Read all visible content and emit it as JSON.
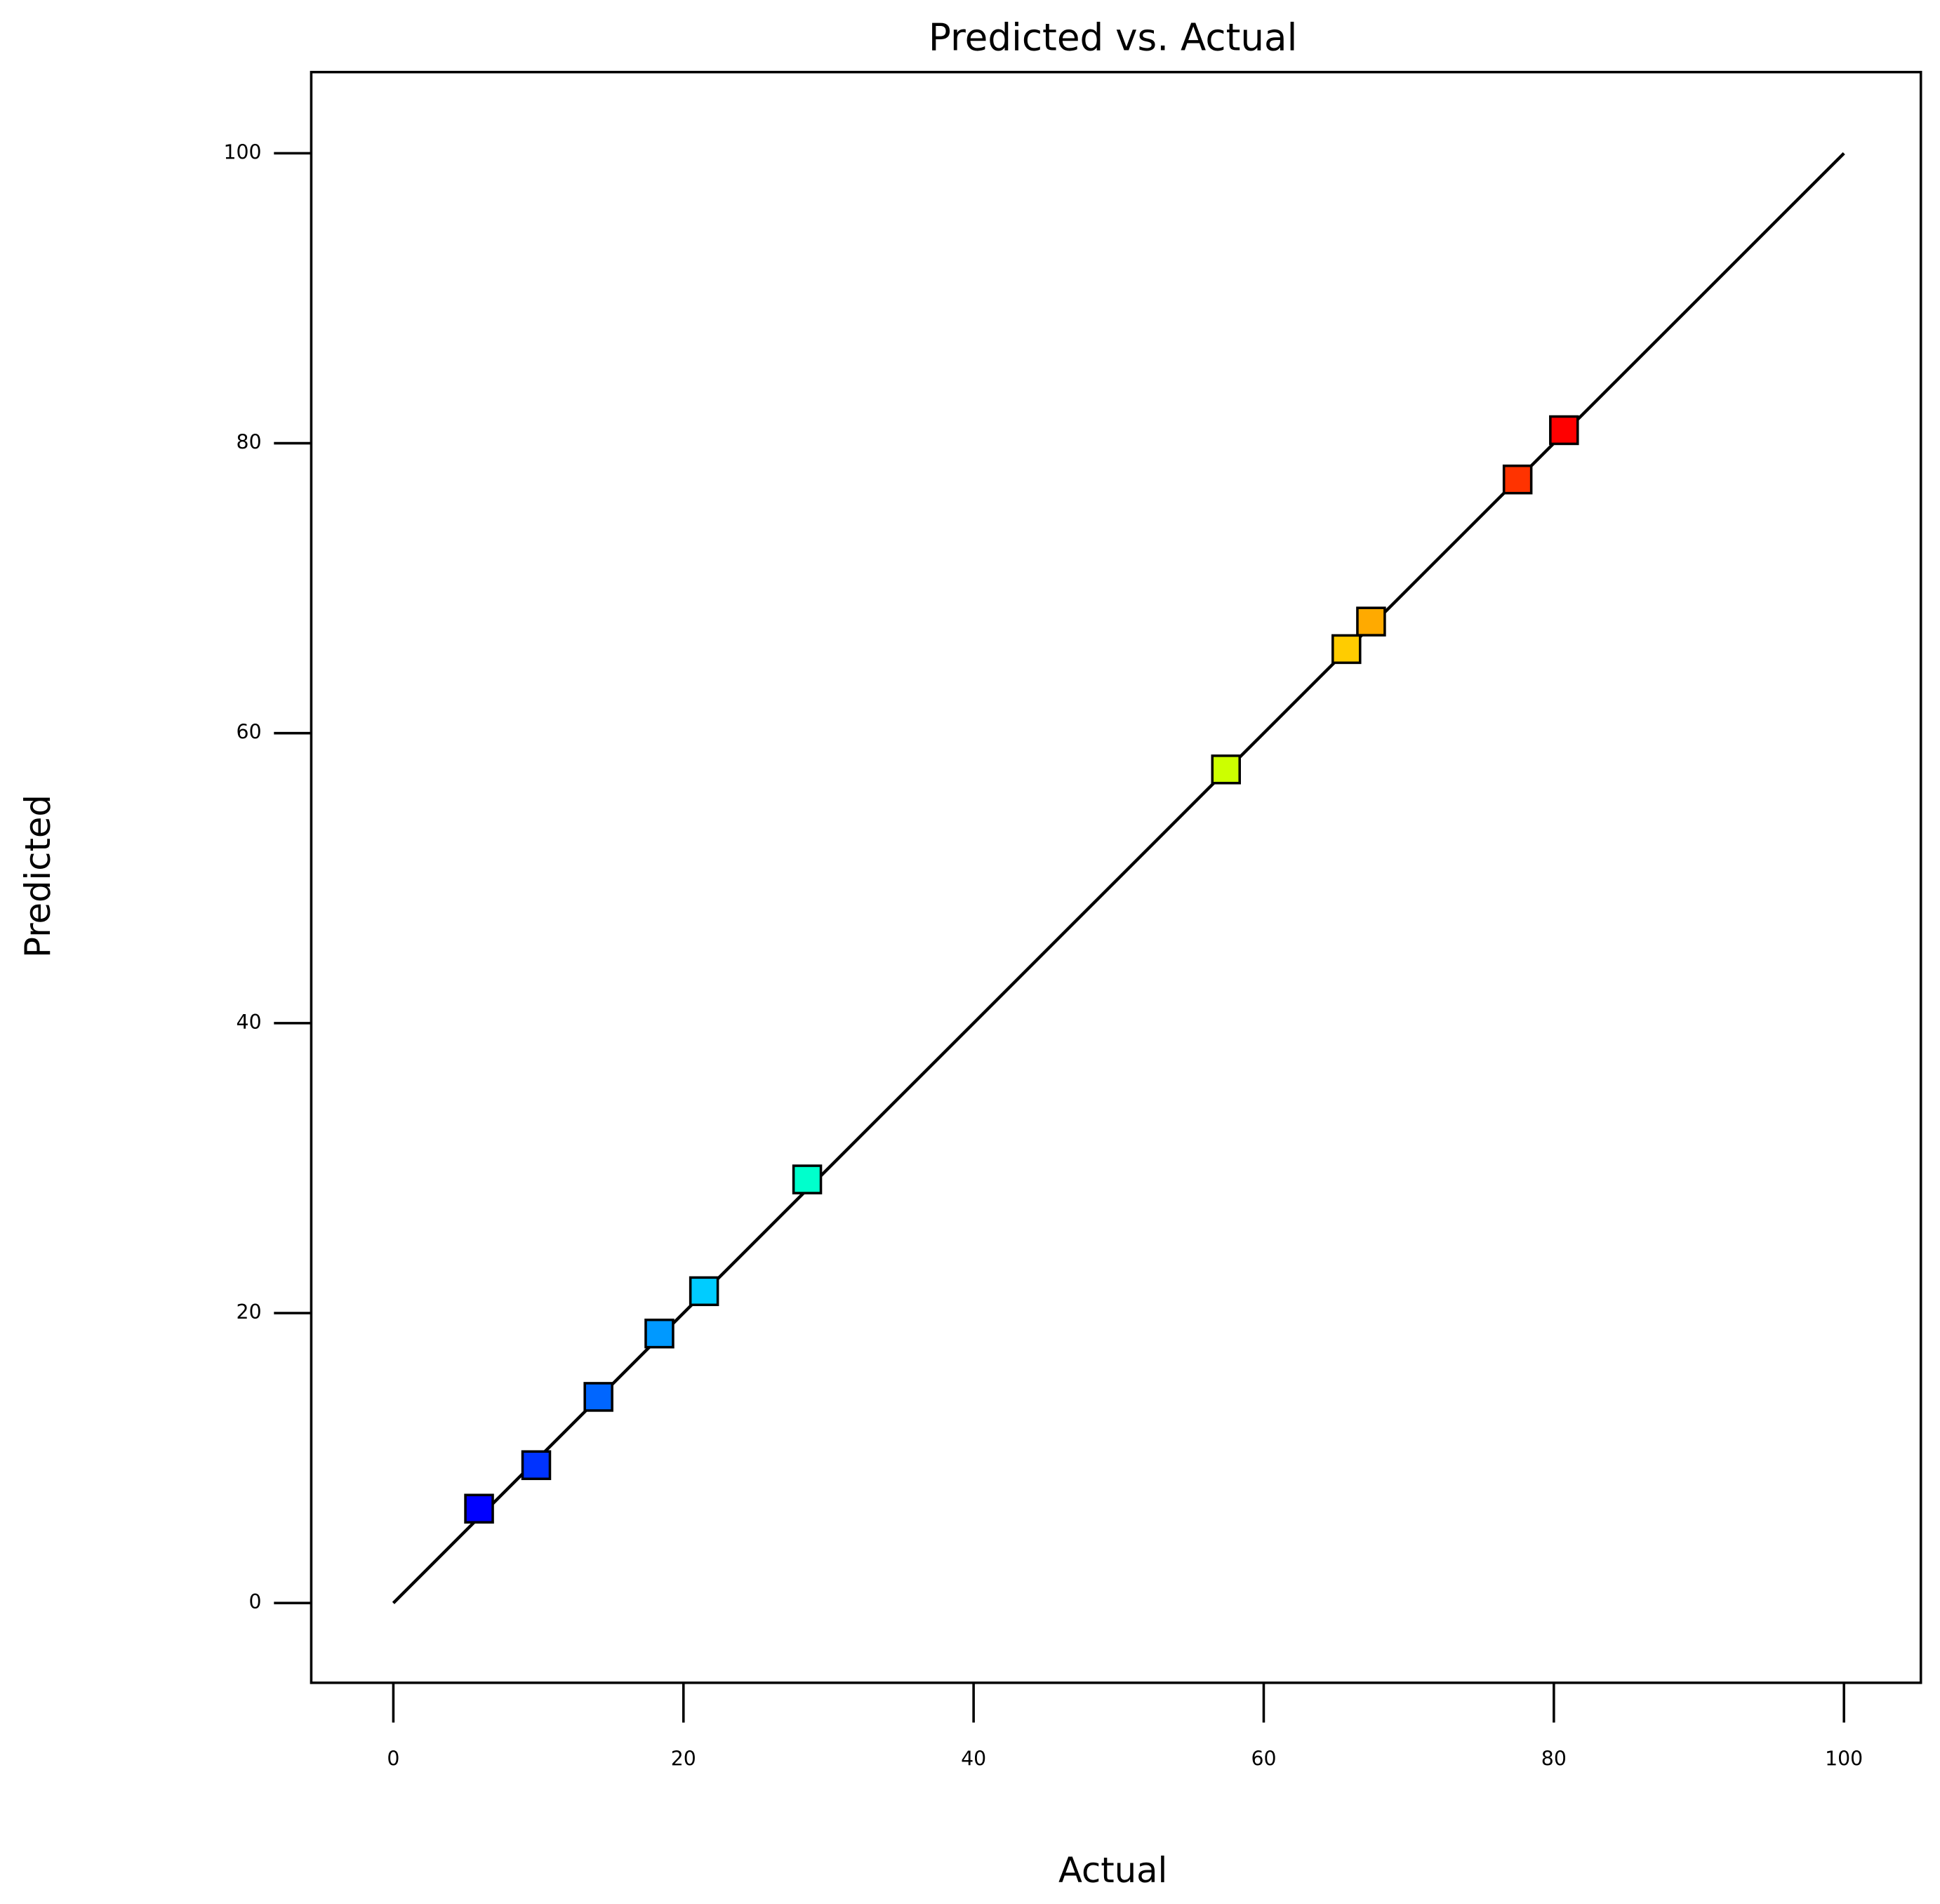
{
  "chart_data": {
    "type": "scatter",
    "title": "Predicted vs. Actual",
    "x_label": "Actual",
    "y_label": "Predicted",
    "series": [
      {
        "x": [
          5.91,
          9.85,
          14.14,
          18.34,
          21.42,
          28.53,
          57.4,
          65.7,
          67.4,
          77.5,
          80.7
        ],
        "values": [
          6.51,
          9.51,
          14.22,
          18.59,
          21.51,
          29.22,
          57.5,
          65.8,
          67.7,
          77.5,
          80.9
        ],
        "colors": [
          "#0000ff",
          "#0033ff",
          "#0066ff",
          "#0099ff",
          "#00ccff",
          "#00ffcc",
          "#ccff00",
          "#ffcc00",
          "#ffaa00",
          "#ff3300",
          "#ff0000"
        ]
      }
    ],
    "diagonal": {
      "x": [
        0,
        100
      ],
      "values": [
        0,
        100
      ],
      "color": "#000000"
    },
    "xlim": [
      -5.66,
      105.3
    ],
    "ylim": [
      -5.5,
      105.6
    ],
    "xticks": [
      0,
      20,
      40,
      60,
      80,
      100
    ],
    "yticks": [
      0,
      20,
      40,
      60,
      80,
      100
    ]
  }
}
